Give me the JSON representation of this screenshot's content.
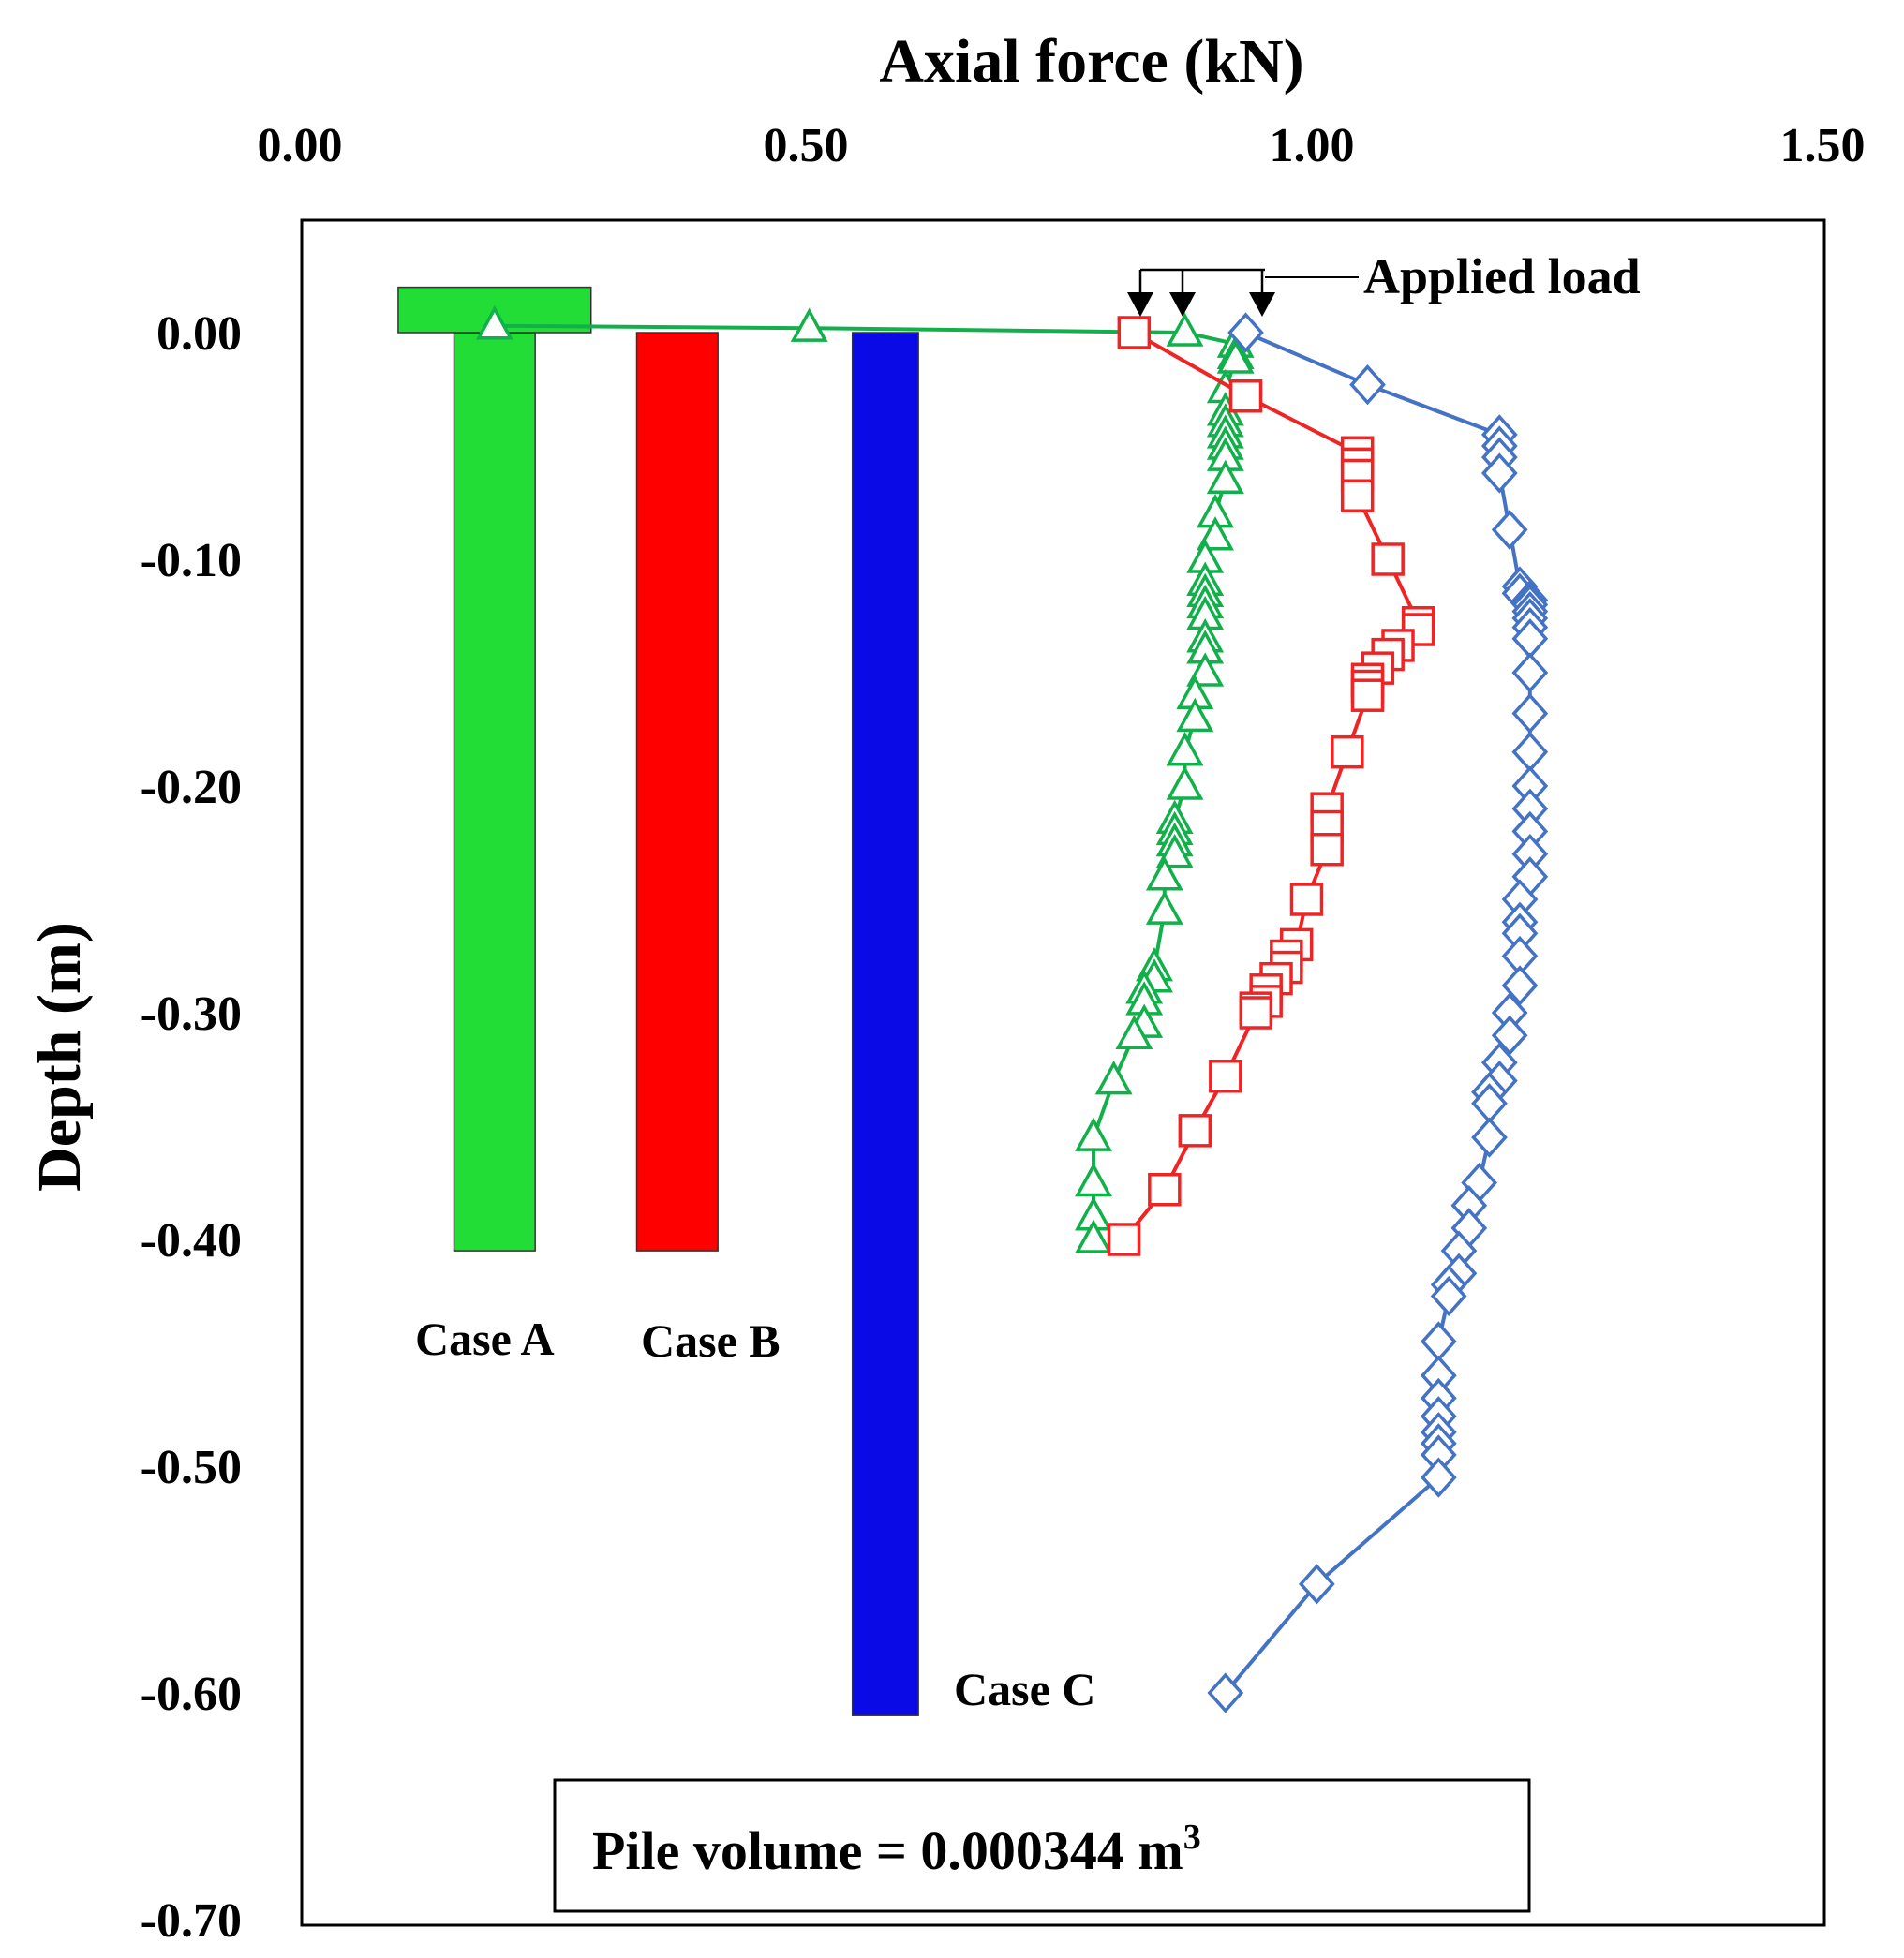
{
  "chart_data": {
    "type": "line",
    "x_label": "Axial force (kN)",
    "y_label": "Depth (m)",
    "xlim": [
      0,
      1.5
    ],
    "ylim": [
      -0.7,
      0.05
    ],
    "x_ticks": [
      "0.00",
      "0.50",
      "1.00",
      "1.50"
    ],
    "y_ticks": [
      {
        "value": 0,
        "label": "0.00"
      },
      {
        "value": -0.1,
        "label": "-0.10"
      },
      {
        "value": -0.2,
        "label": "-0.20"
      },
      {
        "value": -0.3,
        "label": "-0.30"
      },
      {
        "value": -0.4,
        "label": "-0.40"
      },
      {
        "value": -0.5,
        "label": "-0.50"
      },
      {
        "value": -0.6,
        "label": "-0.60"
      },
      {
        "value": -0.7,
        "label": "-0.70"
      }
    ],
    "annotation": "Applied load",
    "note": "Pile volume = 0.000344 m",
    "note_superscript": "3",
    "series": [
      {
        "name": "Case A",
        "color": "#12b04a",
        "marker": "triangle",
        "points": [
          [
            0.19,
            0.003
          ],
          [
            0.5,
            0.002
          ],
          [
            0.87,
            0.0
          ],
          [
            0.92,
            -0.005
          ],
          [
            0.92,
            -0.01
          ],
          [
            0.92,
            -0.012
          ],
          [
            0.91,
            -0.025
          ],
          [
            0.91,
            -0.035
          ],
          [
            0.91,
            -0.04
          ],
          [
            0.91,
            -0.045
          ],
          [
            0.91,
            -0.05
          ],
          [
            0.91,
            -0.055
          ],
          [
            0.91,
            -0.065
          ],
          [
            0.9,
            -0.08
          ],
          [
            0.9,
            -0.09
          ],
          [
            0.89,
            -0.1
          ],
          [
            0.89,
            -0.11
          ],
          [
            0.89,
            -0.115
          ],
          [
            0.89,
            -0.12
          ],
          [
            0.89,
            -0.125
          ],
          [
            0.89,
            -0.135
          ],
          [
            0.89,
            -0.14
          ],
          [
            0.89,
            -0.15
          ],
          [
            0.88,
            -0.16
          ],
          [
            0.88,
            -0.17
          ],
          [
            0.87,
            -0.185
          ],
          [
            0.87,
            -0.2
          ],
          [
            0.86,
            -0.215
          ],
          [
            0.86,
            -0.22
          ],
          [
            0.86,
            -0.225
          ],
          [
            0.86,
            -0.23
          ],
          [
            0.85,
            -0.24
          ],
          [
            0.85,
            -0.255
          ],
          [
            0.84,
            -0.28
          ],
          [
            0.84,
            -0.285
          ],
          [
            0.83,
            -0.29
          ],
          [
            0.83,
            -0.295
          ],
          [
            0.83,
            -0.305
          ],
          [
            0.82,
            -0.31
          ],
          [
            0.8,
            -0.33
          ],
          [
            0.78,
            -0.355
          ],
          [
            0.78,
            -0.375
          ],
          [
            0.78,
            -0.39
          ],
          [
            0.78,
            -0.4
          ]
        ]
      },
      {
        "name": "Case B",
        "color": "#ef2424",
        "marker": "square",
        "points": [
          [
            0.82,
            0.0
          ],
          [
            0.93,
            -0.028
          ],
          [
            1.04,
            -0.053
          ],
          [
            1.04,
            -0.058
          ],
          [
            1.04,
            -0.063
          ],
          [
            1.04,
            -0.072
          ],
          [
            1.07,
            -0.1
          ],
          [
            1.1,
            -0.128
          ],
          [
            1.1,
            -0.131
          ],
          [
            1.08,
            -0.138
          ],
          [
            1.07,
            -0.142
          ],
          [
            1.06,
            -0.148
          ],
          [
            1.05,
            -0.153
          ],
          [
            1.05,
            -0.156
          ],
          [
            1.05,
            -0.16
          ],
          [
            1.03,
            -0.185
          ],
          [
            1.01,
            -0.21
          ],
          [
            1.01,
            -0.218
          ],
          [
            1.01,
            -0.228
          ],
          [
            0.99,
            -0.25
          ],
          [
            0.98,
            -0.27
          ],
          [
            0.97,
            -0.275
          ],
          [
            0.97,
            -0.28
          ],
          [
            0.96,
            -0.285
          ],
          [
            0.95,
            -0.29
          ],
          [
            0.95,
            -0.295
          ],
          [
            0.94,
            -0.298
          ],
          [
            0.94,
            -0.3
          ],
          [
            0.91,
            -0.328
          ],
          [
            0.88,
            -0.352
          ],
          [
            0.85,
            -0.378
          ],
          [
            0.81,
            -0.4
          ]
        ]
      },
      {
        "name": "Case C",
        "color": "#4472c4",
        "marker": "diamond",
        "points": [
          [
            0.93,
            0.0
          ],
          [
            1.05,
            -0.023
          ],
          [
            1.18,
            -0.045
          ],
          [
            1.18,
            -0.05
          ],
          [
            1.18,
            -0.055
          ],
          [
            1.18,
            -0.062
          ],
          [
            1.19,
            -0.087
          ],
          [
            1.2,
            -0.112
          ],
          [
            1.2,
            -0.115
          ],
          [
            1.21,
            -0.118
          ],
          [
            1.21,
            -0.12
          ],
          [
            1.21,
            -0.123
          ],
          [
            1.21,
            -0.126
          ],
          [
            1.21,
            -0.13
          ],
          [
            1.21,
            -0.135
          ],
          [
            1.21,
            -0.15
          ],
          [
            1.21,
            -0.168
          ],
          [
            1.21,
            -0.185
          ],
          [
            1.21,
            -0.2
          ],
          [
            1.21,
            -0.21
          ],
          [
            1.21,
            -0.22
          ],
          [
            1.21,
            -0.23
          ],
          [
            1.21,
            -0.24
          ],
          [
            1.2,
            -0.25
          ],
          [
            1.2,
            -0.26
          ],
          [
            1.2,
            -0.265
          ],
          [
            1.2,
            -0.275
          ],
          [
            1.2,
            -0.288
          ],
          [
            1.19,
            -0.3
          ],
          [
            1.19,
            -0.31
          ],
          [
            1.18,
            -0.322
          ],
          [
            1.18,
            -0.33
          ],
          [
            1.17,
            -0.335
          ],
          [
            1.17,
            -0.34
          ],
          [
            1.17,
            -0.355
          ],
          [
            1.16,
            -0.375
          ],
          [
            1.15,
            -0.385
          ],
          [
            1.15,
            -0.395
          ],
          [
            1.14,
            -0.405
          ],
          [
            1.14,
            -0.415
          ],
          [
            1.13,
            -0.42
          ],
          [
            1.13,
            -0.425
          ],
          [
            1.12,
            -0.445
          ],
          [
            1.12,
            -0.46
          ],
          [
            1.12,
            -0.47
          ],
          [
            1.12,
            -0.478
          ],
          [
            1.12,
            -0.485
          ],
          [
            1.12,
            -0.49
          ],
          [
            1.12,
            -0.495
          ],
          [
            1.12,
            -0.505
          ],
          [
            1.0,
            -0.552
          ],
          [
            0.91,
            -0.6
          ]
        ]
      }
    ],
    "piles": [
      {
        "name": "Case A",
        "label": "Case A",
        "x_center": 0.19,
        "width": 0.08,
        "top": 0.0,
        "bottom": -0.405,
        "cap": true,
        "cap_width": 0.19,
        "cap_top": 0.02,
        "color": "#22dd35"
      },
      {
        "name": "Case B",
        "label": "Case B",
        "x_center": 0.37,
        "width": 0.08,
        "top": 0.0,
        "bottom": -0.405,
        "cap": false,
        "color": "#ff0000"
      },
      {
        "name": "Case C",
        "label": "Case C",
        "x_center": 0.575,
        "width": 0.065,
        "top": 0.0,
        "bottom": -0.61,
        "cap": false,
        "color": "#0a0ae6"
      }
    ]
  }
}
